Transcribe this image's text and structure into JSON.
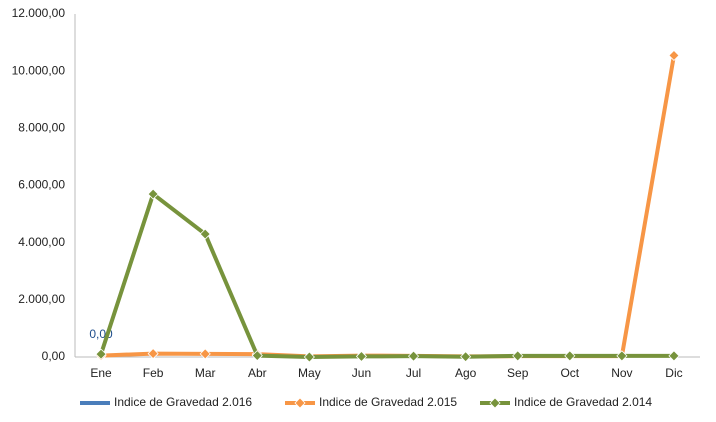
{
  "chart_data": {
    "type": "line",
    "categories": [
      "Ene",
      "Feb",
      "Mar",
      "Abr",
      "May",
      "Jun",
      "Jul",
      "Ago",
      "Sep",
      "Oct",
      "Nov",
      "Dic"
    ],
    "series": [
      {
        "name": "Indice de Gravedad 2.016",
        "color": "#4a7ebb",
        "values": [
          0,
          null,
          null,
          null,
          null,
          null,
          null,
          null,
          null,
          null,
          null,
          null
        ],
        "value_labels": [
          "0,00",
          null,
          null,
          null,
          null,
          null,
          null,
          null,
          null,
          null,
          null,
          null
        ]
      },
      {
        "name": "Indice de Gravedad 2.015",
        "color": "#f79646",
        "values": [
          50,
          120,
          110,
          100,
          20,
          50,
          40,
          20,
          30,
          30,
          30,
          10550
        ]
      },
      {
        "name": "Indice de Gravedad 2.014",
        "color": "#77933c",
        "values": [
          100,
          5700,
          4300,
          50,
          0,
          20,
          30,
          10,
          40,
          40,
          40,
          40
        ]
      }
    ],
    "ylim": [
      0,
      12000
    ],
    "yticks": [
      {
        "value": 0,
        "label": "0,00"
      },
      {
        "value": 2000,
        "label": "2.000,00"
      },
      {
        "value": 4000,
        "label": "4.000,00"
      },
      {
        "value": 6000,
        "label": "6.000,00"
      },
      {
        "value": 8000,
        "label": "8.000,00"
      },
      {
        "value": 10000,
        "label": "10.000,00"
      },
      {
        "value": 12000,
        "label": "12.000,00"
      }
    ],
    "grid": false,
    "legend": "bottom"
  }
}
